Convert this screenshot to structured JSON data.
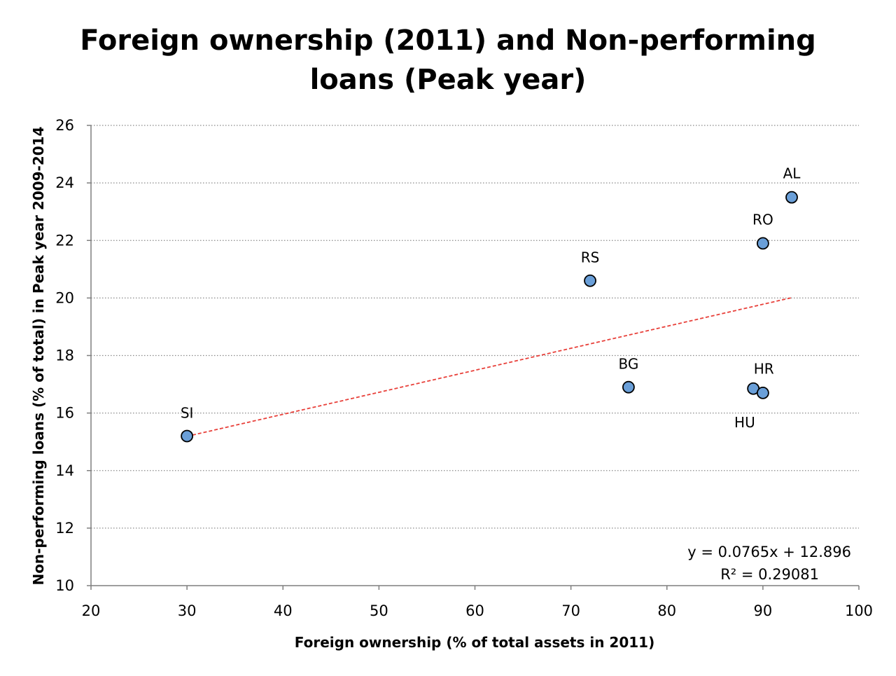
{
  "chart_data": {
    "type": "scatter",
    "title_lines": [
      "Foreign ownership (2011) and Non-performing",
      "loans (Peak year)"
    ],
    "xlabel": "Foreign ownership  (% of total assets in 2011)",
    "ylabel": "Non-performing loans (% of total) in Peak year 2009-2014",
    "xlim": [
      20,
      100
    ],
    "ylim": [
      10,
      26
    ],
    "x_ticks": [
      20,
      30,
      40,
      50,
      60,
      70,
      80,
      90,
      100
    ],
    "y_ticks": [
      10,
      12,
      14,
      16,
      18,
      20,
      22,
      24,
      26
    ],
    "grid": "horizontal dotted",
    "points": [
      {
        "label": "SI",
        "x": 30,
        "y": 15.2
      },
      {
        "label": "RS",
        "x": 72,
        "y": 20.6
      },
      {
        "label": "BG",
        "x": 76,
        "y": 16.9
      },
      {
        "label": "HR",
        "x": 89,
        "y": 16.85
      },
      {
        "label": "HU",
        "x": 90,
        "y": 16.7
      },
      {
        "label": "RO",
        "x": 90,
        "y": 21.9
      },
      {
        "label": "AL",
        "x": 93,
        "y": 23.5
      }
    ],
    "trendline": {
      "slope": 0.0765,
      "intercept": 12.896,
      "x_range": [
        30,
        93
      ],
      "color": "#e8403a"
    },
    "equation": "y = 0.0765x + 12.896",
    "r_squared": "R² = 0.29081",
    "marker_color": "#6a9fd8"
  }
}
